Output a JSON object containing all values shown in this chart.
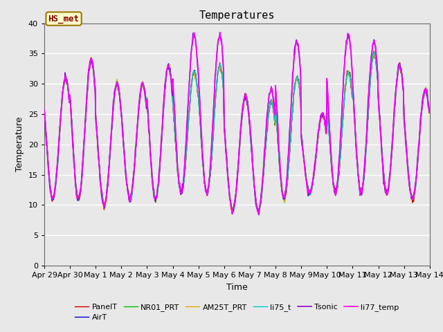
{
  "title": "Temperatures",
  "xlabel": "Time",
  "ylabel": "Temperature",
  "ylim": [
    0,
    40
  ],
  "yticks": [
    0,
    5,
    10,
    15,
    20,
    25,
    30,
    35,
    40
  ],
  "xtick_labels": [
    "Apr 29",
    "Apr 30",
    "May 1",
    "May 2",
    "May 3",
    "May 4",
    "May 5",
    "May 6",
    "May 7",
    "May 8",
    "May 9",
    "May 10",
    "May 11",
    "May 12",
    "May 13",
    "May 14"
  ],
  "series": {
    "PanelT": {
      "color": "#cc0000",
      "lw": 1.0
    },
    "AirT": {
      "color": "#0000cc",
      "lw": 1.0
    },
    "NR01_PRT": {
      "color": "#00bb00",
      "lw": 1.0
    },
    "AM25T_PRT": {
      "color": "#ddaa00",
      "lw": 1.0
    },
    "Tsonic": {
      "color": "#9900cc",
      "lw": 1.2
    },
    "li75_t": {
      "color": "#00cccc",
      "lw": 1.0
    },
    "li77_temp": {
      "color": "#ff00ff",
      "lw": 1.2
    }
  },
  "annotation_text": "HS_met",
  "annotation_color": "#880000",
  "annotation_bg": "#ffffcc",
  "annotation_border": "#997700",
  "plot_bg": "#e8e8e8",
  "fig_bg": "#e8e8e8",
  "grid_color": "#ffffff",
  "title_fontsize": 11,
  "label_fontsize": 9,
  "tick_fontsize": 8,
  "legend_fontsize": 8
}
